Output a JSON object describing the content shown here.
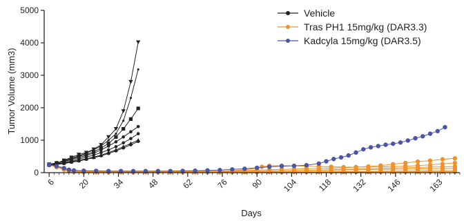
{
  "chart_data": {
    "type": "line",
    "xlabel": "Days",
    "ylabel": "Tumor Volume (mm3)",
    "xlim": [
      4,
      172
    ],
    "ylim": [
      0,
      5000
    ],
    "x_ticks": [
      6,
      20,
      34,
      48,
      62,
      76,
      90,
      104,
      118,
      132,
      146,
      163
    ],
    "y_ticks": [
      0,
      1000,
      2000,
      3000,
      4000,
      5000
    ],
    "legend_position": "top-right",
    "legend": [
      {
        "label": "Vehicle",
        "color": "#222222",
        "marker": "circle"
      },
      {
        "label": "Tras PH1 15mg/kg (DAR3.3)",
        "color": "#f0922a",
        "marker": "circle"
      },
      {
        "label": "Kadcyla 15mg/kg (DAR3.5)",
        "color": "#4a55a8",
        "marker": "circle"
      }
    ],
    "series": [
      {
        "group": "vehicle",
        "color": "#222222",
        "marker": "triangle-down",
        "x": [
          6,
          9,
          12,
          15,
          18,
          21,
          24,
          27,
          30,
          33,
          36,
          39,
          42
        ],
        "y": [
          250,
          290,
          380,
          470,
          560,
          620,
          720,
          860,
          1100,
          1350,
          1900,
          2800,
          4020
        ]
      },
      {
        "group": "vehicle",
        "color": "#222222",
        "marker": "dot",
        "x": [
          6,
          9,
          12,
          15,
          18,
          21,
          24,
          27,
          30,
          33,
          36,
          39,
          42
        ],
        "y": [
          240,
          280,
          360,
          440,
          520,
          600,
          700,
          820,
          1000,
          1200,
          1600,
          2300,
          3180
        ]
      },
      {
        "group": "vehicle",
        "color": "#222222",
        "marker": "square",
        "x": [
          6,
          9,
          12,
          15,
          18,
          21,
          24,
          27,
          30,
          33,
          36,
          39,
          42
        ],
        "y": [
          260,
          300,
          350,
          420,
          500,
          560,
          640,
          760,
          900,
          1100,
          1350,
          1650,
          1980
        ]
      },
      {
        "group": "vehicle",
        "color": "#222222",
        "marker": "circle",
        "x": [
          6,
          9,
          12,
          15,
          18,
          21,
          24,
          27,
          30,
          33,
          36,
          39,
          42
        ],
        "y": [
          250,
          300,
          340,
          400,
          460,
          530,
          600,
          700,
          820,
          950,
          1100,
          1260,
          1420
        ]
      },
      {
        "group": "vehicle",
        "color": "#222222",
        "marker": "circle",
        "x": [
          6,
          9,
          12,
          15,
          18,
          21,
          24,
          27,
          30,
          33,
          36,
          39,
          42
        ],
        "y": [
          230,
          270,
          310,
          360,
          420,
          480,
          540,
          620,
          700,
          800,
          920,
          1050,
          1200
        ]
      },
      {
        "group": "vehicle",
        "color": "#222222",
        "marker": "triangle-up",
        "x": [
          6,
          9,
          12,
          15,
          18,
          21,
          24,
          27,
          30,
          33,
          36,
          39,
          42
        ],
        "y": [
          240,
          260,
          300,
          340,
          380,
          430,
          480,
          540,
          620,
          700,
          800,
          900,
          1000
        ]
      },
      {
        "group": "vehicle",
        "color": "#222222",
        "marker": "circle",
        "x": [
          6,
          9,
          12,
          15,
          18,
          21,
          24,
          27,
          30,
          33,
          36,
          39,
          42
        ],
        "y": [
          220,
          250,
          280,
          320,
          360,
          410,
          460,
          520,
          590,
          670,
          760,
          860,
          960
        ]
      },
      {
        "group": "tras",
        "color": "#f0922a",
        "marker": "circle",
        "x": [
          6,
          9,
          12,
          14,
          16,
          20,
          25,
          30,
          35,
          40,
          45,
          50,
          55,
          60,
          65,
          70,
          75,
          80,
          85,
          90,
          95,
          100,
          105,
          110,
          115,
          120,
          125,
          130,
          135,
          140,
          145,
          150,
          155,
          160,
          165,
          170
        ],
        "y": [
          250,
          200,
          130,
          80,
          60,
          45,
          40,
          35,
          35,
          35,
          35,
          35,
          35,
          40,
          40,
          45,
          50,
          60,
          70,
          80,
          90,
          100,
          110,
          120,
          130,
          140,
          150,
          170,
          190,
          220,
          260,
          300,
          340,
          370,
          410,
          440
        ]
      },
      {
        "group": "tras",
        "color": "#f0922a",
        "marker": "circle",
        "x": [
          6,
          9,
          12,
          14,
          16,
          20,
          25,
          30,
          35,
          40,
          45,
          50,
          55,
          60,
          65,
          70,
          75,
          80,
          85,
          90,
          92,
          95,
          100,
          105,
          110,
          115,
          120,
          125,
          130,
          135,
          140,
          145,
          150,
          155,
          160,
          165,
          170
        ],
        "y": [
          250,
          210,
          140,
          90,
          60,
          45,
          40,
          35,
          35,
          35,
          35,
          35,
          35,
          35,
          40,
          40,
          45,
          60,
          90,
          140,
          180,
          210,
          220,
          210,
          200,
          190,
          180,
          170,
          170,
          175,
          180,
          190,
          200,
          220,
          240,
          270,
          300
        ]
      },
      {
        "group": "tras",
        "color": "#f0922a",
        "marker": "circle",
        "x": [
          6,
          9,
          12,
          14,
          16,
          20,
          25,
          30,
          35,
          40,
          45,
          50,
          55,
          60,
          65,
          70,
          75,
          80,
          85,
          90,
          95,
          100,
          105,
          110,
          115,
          120,
          125,
          130,
          135,
          140,
          145,
          150,
          155,
          160,
          165,
          170
        ],
        "y": [
          250,
          190,
          110,
          60,
          40,
          30,
          25,
          25,
          25,
          25,
          25,
          25,
          25,
          25,
          30,
          30,
          30,
          35,
          40,
          45,
          50,
          55,
          60,
          70,
          80,
          90,
          100,
          110,
          120,
          130,
          140,
          150,
          160,
          170,
          180,
          190
        ]
      },
      {
        "group": "tras",
        "color": "#f0922a",
        "marker": "circle",
        "x": [
          6,
          9,
          12,
          14,
          16,
          20,
          25,
          30,
          35,
          40,
          45,
          50,
          55,
          60,
          65,
          70,
          75,
          80,
          85,
          90,
          95,
          100,
          105,
          110,
          115,
          120,
          125,
          130,
          135,
          140,
          145,
          150,
          155,
          160,
          165,
          170
        ],
        "y": [
          250,
          200,
          120,
          70,
          45,
          35,
          30,
          30,
          30,
          30,
          30,
          30,
          30,
          30,
          30,
          35,
          35,
          40,
          45,
          50,
          55,
          60,
          65,
          70,
          75,
          80,
          85,
          90,
          95,
          100,
          105,
          110,
          115,
          120,
          125,
          130
        ]
      },
      {
        "group": "tras",
        "color": "#f0922a",
        "marker": "circle",
        "x": [
          6,
          9,
          12,
          14,
          16,
          20,
          25,
          30,
          35,
          40,
          45,
          50,
          55,
          60,
          65,
          70,
          75,
          80,
          85,
          90,
          95,
          100,
          105,
          110,
          115,
          120,
          125,
          130,
          135,
          140,
          145,
          150,
          155,
          160,
          165,
          170
        ],
        "y": [
          240,
          180,
          100,
          50,
          30,
          20,
          15,
          15,
          15,
          15,
          15,
          15,
          15,
          15,
          15,
          15,
          20,
          20,
          20,
          25,
          25,
          25,
          30,
          30,
          30,
          35,
          35,
          40,
          40,
          45,
          45,
          50,
          50,
          55,
          55,
          60
        ]
      },
      {
        "group": "tras",
        "color": "#f0922a",
        "marker": "circle",
        "x": [
          6,
          9,
          12,
          14,
          16,
          20,
          25,
          30,
          35,
          40,
          45,
          50,
          55,
          60,
          65,
          70,
          75,
          80,
          85,
          90,
          95,
          100,
          105,
          110,
          115,
          120,
          125,
          130,
          135,
          140,
          145,
          150,
          155,
          160,
          165,
          170
        ],
        "y": [
          240,
          170,
          90,
          45,
          25,
          15,
          10,
          10,
          10,
          10,
          10,
          10,
          10,
          10,
          10,
          10,
          10,
          12,
          12,
          12,
          15,
          15,
          15,
          18,
          18,
          20,
          20,
          22,
          22,
          25,
          25,
          28,
          28,
          30,
          30,
          32
        ]
      },
      {
        "group": "kadcyla",
        "color": "#4a55a8",
        "marker": "circle",
        "x": [
          6,
          9,
          12,
          14,
          16,
          20,
          25,
          30,
          35,
          40,
          45,
          50,
          55,
          60,
          65,
          70,
          75,
          80,
          85,
          90,
          95,
          100,
          105,
          110,
          115,
          118,
          121,
          124,
          127,
          130,
          133,
          136,
          139,
          142,
          145,
          148,
          151,
          154,
          157,
          160,
          163,
          166
        ],
        "y": [
          250,
          200,
          140,
          90,
          70,
          60,
          55,
          50,
          50,
          50,
          50,
          50,
          50,
          55,
          60,
          70,
          80,
          100,
          120,
          150,
          180,
          200,
          210,
          230,
          280,
          350,
          420,
          470,
          530,
          620,
          720,
          780,
          820,
          860,
          890,
          930,
          990,
          1060,
          1120,
          1200,
          1280,
          1400
        ]
      }
    ]
  }
}
